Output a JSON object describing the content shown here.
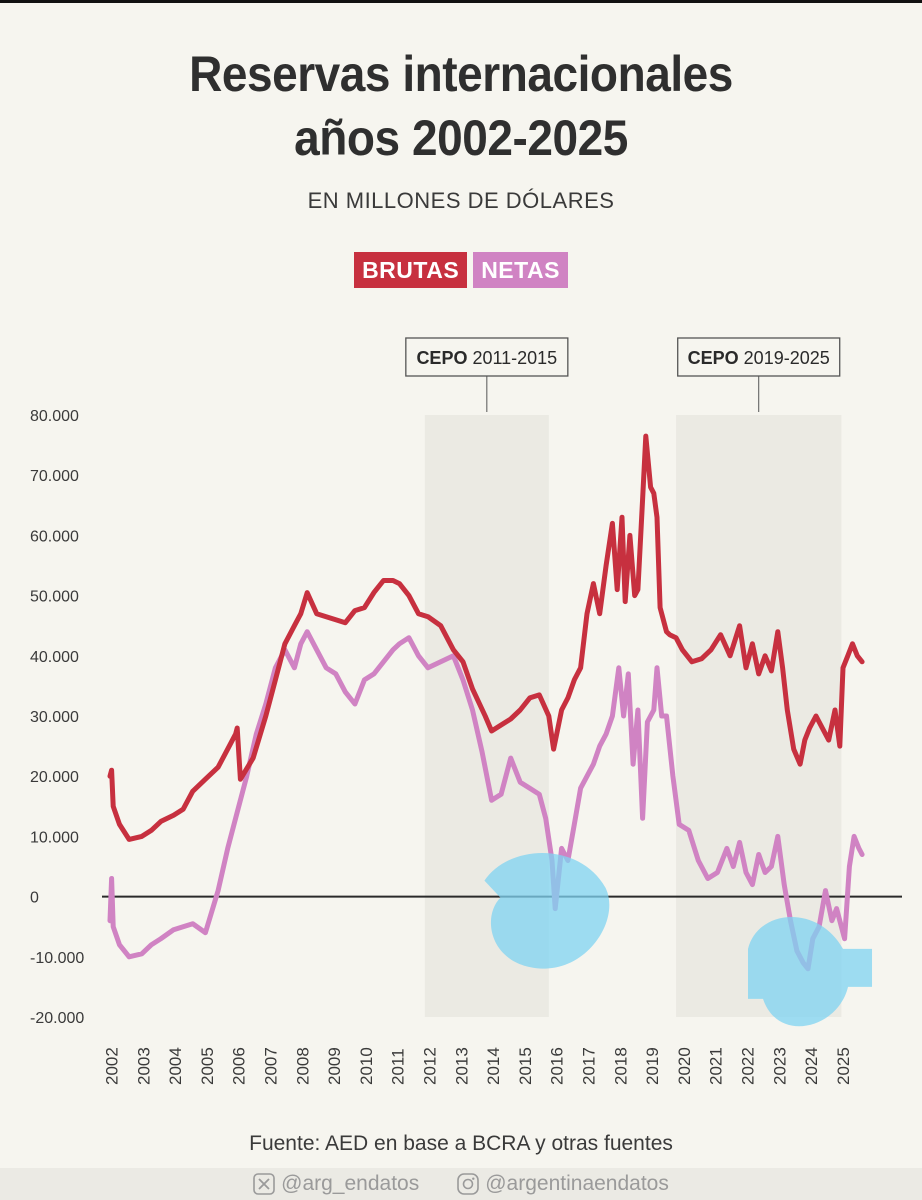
{
  "header": {
    "title_line1": "Reservas internacionales",
    "title_line2": "años 2002-2025",
    "subtitle": "EN MILLONES DE DÓLARES"
  },
  "legend": {
    "brutas": "BRUTAS",
    "netas": "NETAS"
  },
  "colors": {
    "brutas": "#c7303f",
    "netas": "#d083c3",
    "band": "#ebeae3",
    "highlight": "#7fd3f2"
  },
  "annotations": [
    {
      "bold": "CEPO",
      "text": "2011-2015"
    },
    {
      "bold": "CEPO",
      "text": "2019-2025"
    }
  ],
  "chart_data": {
    "type": "line",
    "title": "Reservas internacionales años 2002-2025",
    "subtitle": "EN MILLONES DE DÓLARES",
    "xlabel": "",
    "ylabel": "",
    "ylim": [
      -20000,
      80000
    ],
    "y_ticks": [
      80000,
      70000,
      60000,
      50000,
      40000,
      30000,
      20000,
      10000,
      0,
      -10000,
      -20000
    ],
    "y_tick_labels": [
      "80.000",
      "70.000",
      "60.000",
      "50.000",
      "40.000",
      "30.000",
      "20.000",
      "10.000",
      "0",
      "-10.000",
      "-20.000"
    ],
    "x_tick_labels": [
      "2002",
      "2003",
      "2004",
      "2005",
      "2006",
      "2007",
      "2008",
      "2009",
      "2010",
      "2011",
      "2012",
      "2013",
      "2014",
      "2015",
      "2016",
      "2017",
      "2018",
      "2019",
      "2020",
      "2021",
      "2022",
      "2023",
      "2024",
      "2025"
    ],
    "shaded_periods": [
      {
        "label": "CEPO 2011-2015",
        "start": 2011.9,
        "end": 2015.8
      },
      {
        "label": "CEPO 2019-2025",
        "start": 2019.8,
        "end": 2025.0
      }
    ],
    "series": [
      {
        "name": "BRUTAS",
        "color": "#c7303f",
        "x": [
          2002.0,
          2002.05,
          2002.1,
          2002.3,
          2002.6,
          2003.0,
          2003.3,
          2003.6,
          2004.0,
          2004.3,
          2004.6,
          2005.0,
          2005.4,
          2005.7,
          2005.95,
          2006.0,
          2006.1,
          2006.5,
          2006.9,
          2007.2,
          2007.5,
          2007.8,
          2008.0,
          2008.2,
          2008.5,
          2008.8,
          2009.1,
          2009.4,
          2009.7,
          2010.0,
          2010.3,
          2010.6,
          2010.9,
          2011.1,
          2011.4,
          2011.7,
          2012.0,
          2012.4,
          2012.8,
          2013.1,
          2013.4,
          2013.8,
          2014.0,
          2014.3,
          2014.6,
          2014.9,
          2015.2,
          2015.5,
          2015.8,
          2015.95,
          2016.2,
          2016.4,
          2016.6,
          2016.8,
          2017.0,
          2017.2,
          2017.4,
          2017.6,
          2017.8,
          2017.95,
          2018.1,
          2018.2,
          2018.35,
          2018.5,
          2018.6,
          2018.75,
          2018.85,
          2019.0,
          2019.1,
          2019.2,
          2019.3,
          2019.5,
          2019.6,
          2019.8,
          2020.0,
          2020.3,
          2020.6,
          2020.9,
          2021.2,
          2021.5,
          2021.8,
          2022.0,
          2022.2,
          2022.4,
          2022.6,
          2022.8,
          2023.0,
          2023.15,
          2023.3,
          2023.5,
          2023.7,
          2023.85,
          2024.0,
          2024.2,
          2024.4,
          2024.6,
          2024.8,
          2024.95,
          2025.05,
          2025.2,
          2025.35,
          2025.5,
          2025.65
        ],
        "values": [
          20000,
          21000,
          15000,
          12000,
          9500,
          10000,
          11000,
          12500,
          13500,
          14500,
          17500,
          19500,
          21500,
          24500,
          27000,
          28000,
          19500,
          23000,
          30000,
          36000,
          42000,
          45000,
          47000,
          50500,
          47000,
          46500,
          46000,
          45500,
          47500,
          48000,
          50500,
          52500,
          52500,
          52000,
          50000,
          47000,
          46500,
          45000,
          41000,
          39000,
          34500,
          30000,
          27500,
          28500,
          29500,
          31000,
          33000,
          33500,
          30000,
          24500,
          31000,
          33000,
          36000,
          38000,
          47000,
          52000,
          47000,
          55000,
          62000,
          51000,
          63000,
          49000,
          60000,
          50000,
          51000,
          66000,
          76500,
          68000,
          67000,
          63000,
          48000,
          44000,
          43500,
          43000,
          41000,
          39000,
          39500,
          41000,
          43500,
          40000,
          45000,
          38000,
          42000,
          37000,
          40000,
          37500,
          44000,
          38000,
          31000,
          24500,
          22000,
          26000,
          28000,
          30000,
          28000,
          26000,
          31000,
          25000,
          38000,
          40000,
          42000,
          40000,
          39000
        ]
      },
      {
        "name": "NETAS",
        "color": "#d083c3",
        "x": [
          2002.0,
          2002.05,
          2002.1,
          2002.3,
          2002.6,
          2003.0,
          2003.3,
          2003.6,
          2004.0,
          2004.3,
          2004.6,
          2005.0,
          2005.4,
          2005.7,
          2006.0,
          2006.3,
          2006.6,
          2006.9,
          2007.2,
          2007.5,
          2007.8,
          2008.0,
          2008.2,
          2008.5,
          2008.8,
          2009.1,
          2009.4,
          2009.7,
          2010.0,
          2010.3,
          2010.6,
          2010.9,
          2011.1,
          2011.4,
          2011.7,
          2012.0,
          2012.4,
          2012.8,
          2013.1,
          2013.4,
          2013.7,
          2014.0,
          2014.3,
          2014.6,
          2014.9,
          2015.2,
          2015.5,
          2015.7,
          2015.9,
          2016.0,
          2016.2,
          2016.4,
          2016.6,
          2016.8,
          2017.0,
          2017.2,
          2017.4,
          2017.6,
          2017.8,
          2018.0,
          2018.15,
          2018.3,
          2018.45,
          2018.6,
          2018.75,
          2018.9,
          2019.1,
          2019.2,
          2019.35,
          2019.5,
          2019.7,
          2019.9,
          2020.2,
          2020.5,
          2020.8,
          2021.1,
          2021.4,
          2021.6,
          2021.8,
          2022.0,
          2022.2,
          2022.4,
          2022.6,
          2022.8,
          2023.0,
          2023.2,
          2023.4,
          2023.6,
          2023.8,
          2023.95,
          2024.1,
          2024.3,
          2024.5,
          2024.7,
          2024.85,
          2025.0,
          2025.1,
          2025.25,
          2025.4,
          2025.55,
          2025.65
        ],
        "values": [
          -4000,
          3000,
          -5000,
          -8000,
          -10000,
          -9500,
          -8000,
          -7000,
          -5500,
          -5000,
          -4500,
          -6000,
          1000,
          8000,
          14000,
          20000,
          27000,
          32000,
          38000,
          41000,
          38000,
          42000,
          44000,
          41000,
          38000,
          37000,
          34000,
          32000,
          36000,
          37000,
          39000,
          41000,
          42000,
          43000,
          40000,
          38000,
          39000,
          40000,
          36000,
          31000,
          24000,
          16000,
          17000,
          23000,
          19000,
          18000,
          17000,
          13000,
          6000,
          -2000,
          8000,
          6000,
          12000,
          18000,
          20000,
          22000,
          25000,
          27000,
          30000,
          38000,
          30000,
          37000,
          22000,
          31000,
          13000,
          29000,
          31000,
          38000,
          30000,
          30000,
          20000,
          12000,
          11000,
          6000,
          3000,
          4000,
          8000,
          5000,
          9000,
          4000,
          2000,
          7000,
          4000,
          5000,
          10000,
          2000,
          -4000,
          -9000,
          -11000,
          -12000,
          -7000,
          -5000,
          1000,
          -4000,
          -2000,
          -5000,
          -7000,
          5000,
          10000,
          8000,
          7000
        ]
      }
    ]
  },
  "footer": {
    "source": "Fuente: AED en base a BCRA y otras fuentes",
    "twitter": "@arg_endatos",
    "instagram": "@argentinaendatos"
  }
}
